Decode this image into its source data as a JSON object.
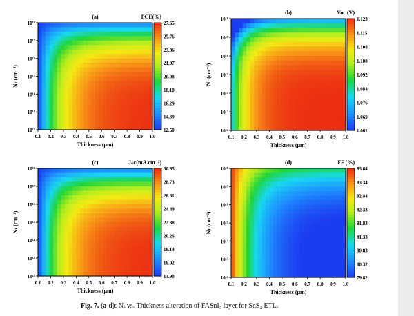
{
  "caption": {
    "label": "Fig. 7.",
    "subpanels": "(a-d)",
    "text": ": Nₜ vs. Thickness alteration of FASnI₃ layer for SnS₂ ETL."
  },
  "chart_data": [
    {
      "type": "heatmap",
      "panel_label": "(a)",
      "colorbar_title": "PCE(%)",
      "xlabel": "Thickness (μm)",
      "ylabel": "Nₜ (cm⁻³)",
      "x_ticks": [
        "0.1",
        "0.2",
        "0.3",
        "0.4",
        "0.5",
        "0.6",
        "0.7",
        "0.8",
        "0.9",
        "1.0"
      ],
      "y_ticks": [
        "10¹²",
        "10¹³",
        "10¹⁴",
        "10¹⁵",
        "10¹⁶",
        "10¹⁷",
        "10¹⁸"
      ],
      "xlim": [
        0.1,
        1.0
      ],
      "ylim_log10": [
        12,
        18
      ],
      "colorbar_ticks": [
        "27.65",
        "25.76",
        "23.86",
        "21.97",
        "20.08",
        "18.18",
        "16.29",
        "14.39",
        "12.50"
      ],
      "zlim": [
        12.5,
        27.65
      ],
      "pattern": "increases_with_thickness"
    },
    {
      "type": "heatmap",
      "panel_label": "(b)",
      "colorbar_title": "Voc (V)",
      "xlabel": "Thickness (μm)",
      "ylabel": "Nₜ (cm⁻³)",
      "x_ticks": [
        "0.1",
        "0.2",
        "0.3",
        "0.4",
        "0.5",
        "0.6",
        "0.7",
        "0.8",
        "0.9",
        "1.0"
      ],
      "y_ticks": [
        "10¹²",
        "10¹³",
        "10¹⁴",
        "10¹⁵",
        "10¹⁶",
        "10¹⁷",
        "10¹⁸"
      ],
      "xlim": [
        0.1,
        1.0
      ],
      "ylim_log10": [
        12,
        18
      ],
      "colorbar_ticks": [
        "1.123",
        "1.115",
        "1.108",
        "1.100",
        "1.092",
        "1.084",
        "1.076",
        "1.069",
        "1.061"
      ],
      "zlim": [
        1.061,
        1.123
      ],
      "pattern": "voc"
    },
    {
      "type": "heatmap",
      "panel_label": "(c)",
      "colorbar_title": "Jₛᴄ(mA.cm⁻²)",
      "xlabel": "Thickness (μm)",
      "ylabel": "Nₜ (cm⁻³)",
      "x_ticks": [
        "0.1",
        "0.2",
        "0.3",
        "0.4",
        "0.5",
        "0.6",
        "0.7",
        "0.8",
        "0.9",
        "1.0"
      ],
      "y_ticks": [
        "10¹²",
        "10¹³",
        "10¹⁴",
        "10¹⁵",
        "10¹⁶",
        "10¹⁷",
        "10¹⁸"
      ],
      "xlim": [
        0.1,
        1.0
      ],
      "ylim_log10": [
        12,
        18
      ],
      "colorbar_ticks": [
        "30.85",
        "28.73",
        "26.61",
        "24.49",
        "22.38",
        "20.26",
        "18.14",
        "16.02",
        "13.90"
      ],
      "zlim": [
        13.9,
        30.85
      ],
      "pattern": "increases_with_thickness"
    },
    {
      "type": "heatmap",
      "panel_label": "(d)",
      "colorbar_title": "FF (%)",
      "xlabel": "Thickness (μm)",
      "ylabel": "Nₜ (cm⁻³)",
      "x_ticks": [
        "0.1",
        "0.2",
        "0.3",
        "0.4",
        "0.5",
        "0.6",
        "0.7",
        "0.8",
        "0.9",
        "1.0"
      ],
      "y_ticks": [
        "10¹²",
        "10¹³",
        "10¹⁴",
        "10¹⁵",
        "10¹⁶",
        "10¹⁷",
        "10¹⁸"
      ],
      "xlim": [
        0.1,
        1.0
      ],
      "ylim_log10": [
        12,
        18
      ],
      "colorbar_ticks": [
        "83.84",
        "83.34",
        "82.84",
        "82.33",
        "81.83",
        "81.33",
        "80.83",
        "80.32",
        "79.82"
      ],
      "zlim": [
        79.82,
        83.84
      ],
      "pattern": "decreases_with_thickness"
    }
  ]
}
